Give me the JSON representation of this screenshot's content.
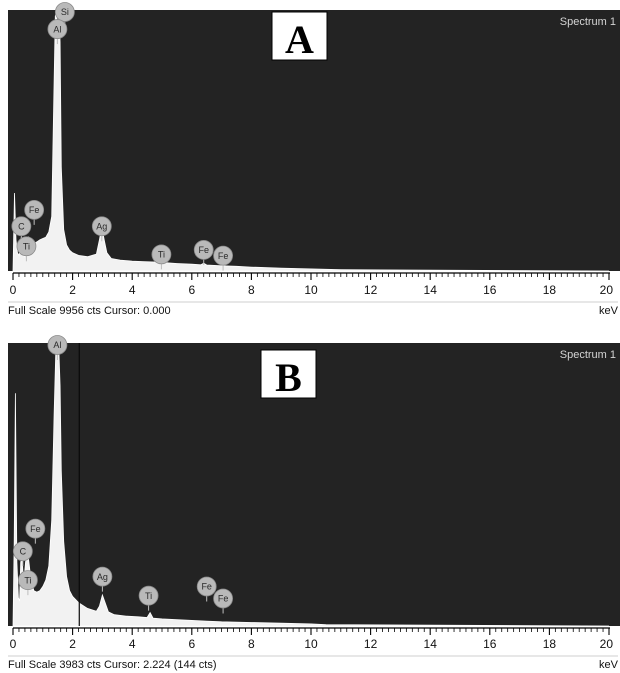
{
  "chart_data": [
    {
      "type": "area",
      "panel_label": "A",
      "title": "Spectrum 1",
      "xlabel": "keV",
      "xlim": [
        0,
        20
      ],
      "xticks": [
        "0",
        "2",
        "4",
        "6",
        "8",
        "10",
        "12",
        "14",
        "16",
        "18",
        "20"
      ],
      "full_scale_counts": 9956,
      "status_text": "Full Scale 9956 cts Cursor: 0.000",
      "spectrum": {
        "x": [
          0,
          0.05,
          0.1,
          0.15,
          0.2,
          0.25,
          0.28,
          0.32,
          0.38,
          0.45,
          0.52,
          0.6,
          0.7,
          0.8,
          0.9,
          1.0,
          1.1,
          1.2,
          1.3,
          1.36,
          1.42,
          1.46,
          1.5,
          1.54,
          1.58,
          1.62,
          1.7,
          1.8,
          1.9,
          2.0,
          2.2,
          2.5,
          2.8,
          2.9,
          2.98,
          3.06,
          3.15,
          3.3,
          3.6,
          4.0,
          4.4,
          4.9,
          5.0,
          5.1,
          5.5,
          6.0,
          6.3,
          6.4,
          6.5,
          7.0,
          7.5,
          8.0,
          9.0,
          10.0,
          11.0,
          20.0
        ],
        "y": [
          0,
          3000,
          1200,
          700,
          600,
          900,
          1300,
          700,
          550,
          1000,
          1300,
          1100,
          1050,
          1120,
          1200,
          1250,
          1300,
          1500,
          2100,
          6000,
          9800,
          9956,
          9200,
          9956,
          8800,
          4000,
          1600,
          1000,
          800,
          700,
          600,
          550,
          650,
          1200,
          1700,
          1200,
          700,
          480,
          420,
          380,
          360,
          340,
          430,
          320,
          290,
          260,
          240,
          300,
          230,
          200,
          180,
          150,
          110,
          80,
          50,
          0
        ]
      },
      "peak_labels": [
        {
          "label": "Si",
          "x": 1.74,
          "y": 9956
        },
        {
          "label": "Al",
          "x": 1.49,
          "y": 9300
        },
        {
          "label": "Fe",
          "x": 0.71,
          "y": 2350
        },
        {
          "label": "C",
          "x": 0.28,
          "y": 1720
        },
        {
          "label": "Ti",
          "x": 0.45,
          "y": 950
        },
        {
          "label": "Ag",
          "x": 2.98,
          "y": 1720
        },
        {
          "label": "Ti",
          "x": 4.98,
          "y": 640
        },
        {
          "label": "Fe",
          "x": 6.4,
          "y": 810
        },
        {
          "label": "Fe",
          "x": 7.05,
          "y": 590
        }
      ]
    },
    {
      "type": "area",
      "panel_label": "B",
      "title": "Spectrum 1",
      "xlabel": "keV",
      "xlim": [
        0,
        20
      ],
      "xticks": [
        "0",
        "2",
        "4",
        "6",
        "8",
        "10",
        "12",
        "14",
        "16",
        "18",
        "20"
      ],
      "full_scale_counts": 3983,
      "status_text": "Full Scale 3983 cts Cursor: 2.224  (144 cts)",
      "cursor_kev": 2.224,
      "spectrum": {
        "x": [
          0,
          0.04,
          0.08,
          0.13,
          0.18,
          0.22,
          0.26,
          0.3,
          0.36,
          0.42,
          0.48,
          0.55,
          0.6,
          0.7,
          0.8,
          0.9,
          1.0,
          1.1,
          1.2,
          1.3,
          1.38,
          1.44,
          1.49,
          1.54,
          1.58,
          1.62,
          1.7,
          1.8,
          1.9,
          2.0,
          2.2,
          2.5,
          2.8,
          2.9,
          3.0,
          3.1,
          3.2,
          3.4,
          3.8,
          4.2,
          4.5,
          4.6,
          4.7,
          5.0,
          5.5,
          6.0,
          6.5,
          7.0,
          7.5,
          8.0,
          9.0,
          10.0,
          10.5,
          20.0
        ],
        "y": [
          0,
          1200,
          3300,
          900,
          400,
          350,
          900,
          1000,
          600,
          900,
          1100,
          850,
          650,
          500,
          480,
          500,
          560,
          650,
          850,
          1500,
          3000,
          3950,
          3983,
          3900,
          3400,
          2200,
          1200,
          700,
          500,
          420,
          330,
          250,
          210,
          280,
          440,
          320,
          200,
          160,
          140,
          130,
          120,
          190,
          110,
          100,
          90,
          80,
          70,
          60,
          55,
          50,
          40,
          30,
          20,
          0
        ]
      },
      "peak_labels": [
        {
          "label": "Al",
          "x": 1.49,
          "y": 3983
        },
        {
          "label": "Fe",
          "x": 0.75,
          "y": 1380
        },
        {
          "label": "C",
          "x": 0.33,
          "y": 1060
        },
        {
          "label": "Ti",
          "x": 0.5,
          "y": 650
        },
        {
          "label": "Ag",
          "x": 3.0,
          "y": 700
        },
        {
          "label": "Ti",
          "x": 4.55,
          "y": 430
        },
        {
          "label": "Fe",
          "x": 6.5,
          "y": 560
        },
        {
          "label": "Fe",
          "x": 7.05,
          "y": 390
        }
      ]
    }
  ]
}
